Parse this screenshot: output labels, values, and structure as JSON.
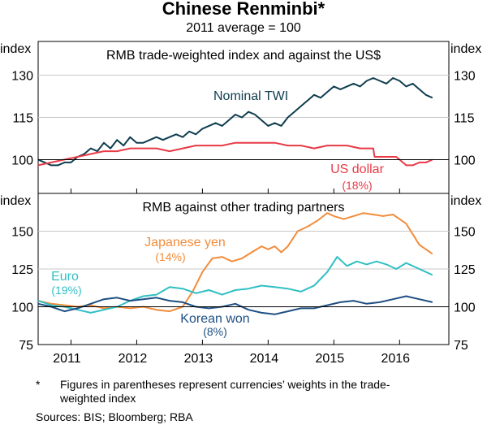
{
  "title": "Chinese Renminbi*",
  "subtitle": "2011 average = 100",
  "footnote": {
    "marker": "*",
    "text": "Figures in parentheses represent currencies’ weights in the trade-weighted index",
    "sources": "Sources:  BIS; Bloomberg; RBA"
  },
  "colors": {
    "nominal_twi": "#0f3d4f",
    "us_dollar": "#e83a47",
    "japanese_yen": "#f28c3a",
    "euro": "#31bfc4",
    "korean_won": "#1f4f82"
  },
  "chart_data": [
    {
      "type": "line",
      "panel": "top",
      "title": "RMB trade-weighted index and against the US$",
      "ylabel_left": "index",
      "ylabel_right": "index",
      "ylim": [
        88,
        142
      ],
      "yticks": [
        100,
        115,
        130
      ],
      "xlim": [
        2010.5,
        2016.75
      ],
      "xtick_labels": [
        "2011",
        "2012",
        "2013",
        "2014",
        "2015",
        "2016"
      ],
      "series": [
        {
          "name": "Nominal TWI",
          "label": "Nominal TWI",
          "weight": "",
          "x": [
            2010.5,
            2010.6,
            2010.7,
            2010.8,
            2010.9,
            2011.0,
            2011.1,
            2011.2,
            2011.3,
            2011.4,
            2011.5,
            2011.6,
            2011.7,
            2011.8,
            2011.9,
            2012.0,
            2012.1,
            2012.2,
            2012.3,
            2012.4,
            2012.5,
            2012.6,
            2012.7,
            2012.8,
            2012.9,
            2013.0,
            2013.1,
            2013.2,
            2013.3,
            2013.4,
            2013.5,
            2013.6,
            2013.7,
            2013.8,
            2013.9,
            2014.0,
            2014.1,
            2014.2,
            2014.3,
            2014.4,
            2014.5,
            2014.6,
            2014.7,
            2014.8,
            2014.9,
            2015.0,
            2015.1,
            2015.2,
            2015.3,
            2015.4,
            2015.5,
            2015.6,
            2015.7,
            2015.8,
            2015.9,
            2016.0,
            2016.1,
            2016.2,
            2016.3,
            2016.4,
            2016.5
          ],
          "y": [
            100,
            99,
            98,
            98,
            99,
            99,
            101,
            102,
            104,
            103,
            106,
            104,
            107,
            105,
            108,
            106,
            106,
            107,
            108,
            107,
            108,
            109,
            108,
            110,
            109,
            111,
            112,
            113,
            112,
            114,
            116,
            115,
            117,
            116,
            114,
            112,
            113,
            112,
            115,
            117,
            119,
            121,
            123,
            122,
            124,
            126,
            125,
            126,
            127,
            126,
            128,
            129,
            128,
            127,
            129,
            128,
            126,
            127,
            125,
            123,
            122
          ]
        },
        {
          "name": "US dollar",
          "label": "US dollar",
          "weight": "(18%)",
          "x": [
            2010.5,
            2010.7,
            2010.9,
            2011.1,
            2011.3,
            2011.5,
            2011.7,
            2011.9,
            2012.1,
            2012.3,
            2012.5,
            2012.7,
            2012.9,
            2013.1,
            2013.3,
            2013.5,
            2013.7,
            2013.9,
            2014.1,
            2014.3,
            2014.5,
            2014.7,
            2014.9,
            2015.0,
            2015.2,
            2015.4,
            2015.6,
            2015.62,
            2015.8,
            2015.95,
            2016.0,
            2016.1,
            2016.2,
            2016.3,
            2016.4,
            2016.5
          ],
          "y": [
            98,
            99,
            100,
            101,
            102,
            103,
            103,
            104,
            104,
            104,
            103,
            104,
            105,
            105,
            105,
            106,
            106,
            106,
            106,
            105,
            105,
            104,
            105,
            105,
            105,
            104,
            104,
            101,
            101,
            101,
            100,
            98,
            98,
            99,
            99,
            100
          ]
        }
      ],
      "annotations": [
        "Nominal TWI",
        "US dollar",
        "(18%)"
      ]
    },
    {
      "type": "line",
      "panel": "bottom",
      "title": "RMB against other trading partners",
      "ylabel_left": "index",
      "ylabel_right": "index",
      "ylim": [
        75,
        175
      ],
      "yticks": [
        75,
        100,
        125,
        150
      ],
      "xlim": [
        2010.5,
        2016.75
      ],
      "xtick_labels": [
        "2011",
        "2012",
        "2013",
        "2014",
        "2015",
        "2016"
      ],
      "series": [
        {
          "name": "Japanese yen",
          "label": "Japanese yen",
          "weight": "(14%)",
          "x": [
            2010.5,
            2010.7,
            2010.9,
            2011.1,
            2011.3,
            2011.5,
            2011.7,
            2011.9,
            2012.1,
            2012.3,
            2012.5,
            2012.7,
            2012.85,
            2013.0,
            2013.15,
            2013.3,
            2013.45,
            2013.6,
            2013.75,
            2013.9,
            2014.0,
            2014.1,
            2014.2,
            2014.3,
            2014.45,
            2014.6,
            2014.75,
            2014.9,
            2015.0,
            2015.15,
            2015.3,
            2015.45,
            2015.6,
            2015.75,
            2015.9,
            2016.0,
            2016.1,
            2016.2,
            2016.3,
            2016.4,
            2016.5
          ],
          "y": [
            104,
            102,
            101,
            100,
            101,
            99,
            100,
            99,
            100,
            98,
            97,
            100,
            110,
            123,
            132,
            133,
            130,
            132,
            136,
            140,
            138,
            140,
            136,
            140,
            150,
            153,
            157,
            162,
            160,
            158,
            160,
            162,
            161,
            160,
            161,
            158,
            155,
            148,
            141,
            138,
            135
          ]
        },
        {
          "name": "Euro",
          "label": "Euro",
          "weight": "(19%)",
          "x": [
            2010.5,
            2010.7,
            2010.9,
            2011.1,
            2011.3,
            2011.5,
            2011.7,
            2011.9,
            2012.1,
            2012.3,
            2012.5,
            2012.7,
            2012.9,
            2013.1,
            2013.3,
            2013.5,
            2013.7,
            2013.9,
            2014.1,
            2014.3,
            2014.5,
            2014.7,
            2014.9,
            2015.05,
            2015.2,
            2015.35,
            2015.5,
            2015.65,
            2015.8,
            2015.95,
            2016.1,
            2016.25,
            2016.4,
            2016.5
          ],
          "y": [
            104,
            101,
            100,
            98,
            96,
            98,
            100,
            104,
            107,
            108,
            113,
            112,
            109,
            111,
            108,
            111,
            112,
            114,
            113,
            112,
            110,
            114,
            123,
            133,
            127,
            130,
            128,
            130,
            128,
            125,
            129,
            126,
            123,
            121
          ]
        },
        {
          "name": "Korean won",
          "label": "Korean won",
          "weight": "(8%)",
          "x": [
            2010.5,
            2010.7,
            2010.9,
            2011.1,
            2011.3,
            2011.5,
            2011.7,
            2011.9,
            2012.1,
            2012.3,
            2012.5,
            2012.7,
            2012.9,
            2013.1,
            2013.3,
            2013.5,
            2013.7,
            2013.9,
            2014.1,
            2014.3,
            2014.5,
            2014.7,
            2014.9,
            2015.1,
            2015.3,
            2015.5,
            2015.7,
            2015.9,
            2016.1,
            2016.3,
            2016.5
          ],
          "y": [
            102,
            100,
            97,
            99,
            102,
            105,
            106,
            104,
            105,
            106,
            104,
            103,
            100,
            99,
            100,
            102,
            98,
            96,
            95,
            97,
            99,
            99,
            101,
            103,
            104,
            102,
            103,
            105,
            107,
            105,
            103
          ]
        }
      ],
      "annotations": [
        "Japanese yen",
        "(14%)",
        "Euro",
        "(19%)",
        "Korean won",
        "(8%)"
      ]
    }
  ]
}
